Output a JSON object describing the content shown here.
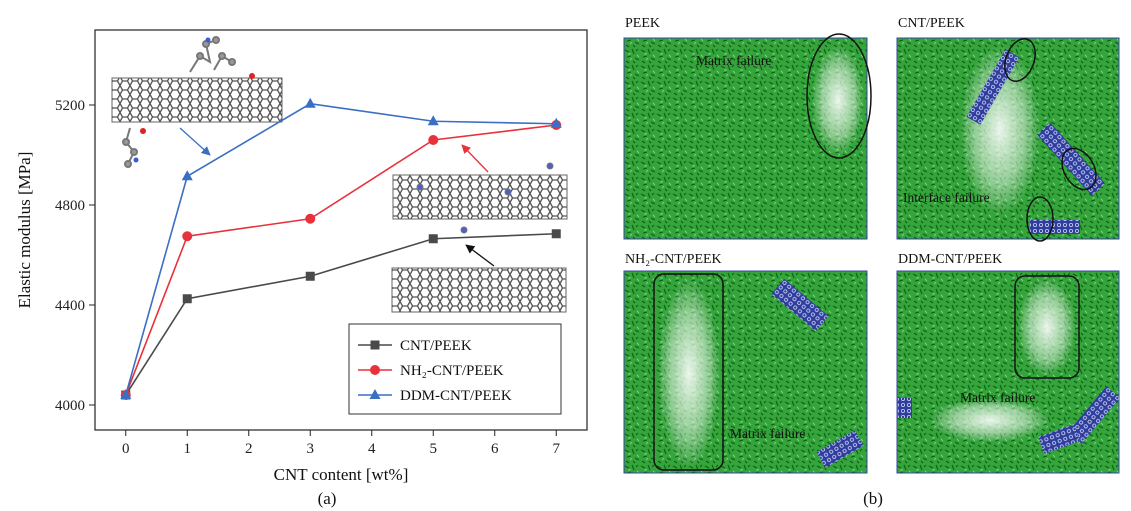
{
  "chart_data": {
    "type": "line",
    "xlabel": "CNT content [wt%]",
    "ylabel": "Elastic modulus [MPa]",
    "xlim": [
      -0.5,
      7.5
    ],
    "ylim": [
      3900,
      5500
    ],
    "x_ticks": [
      0,
      1,
      2,
      3,
      4,
      5,
      6,
      7
    ],
    "y_ticks": [
      4000,
      4400,
      4800,
      5200
    ],
    "grid": false,
    "legend_position": "bottom-right",
    "series": [
      {
        "name": "CNT/PEEK",
        "color": "#4a4a4a",
        "marker": "square",
        "x": [
          0,
          1,
          3,
          5,
          7
        ],
        "y": [
          4040,
          4425,
          4515,
          4665,
          4685
        ]
      },
      {
        "name": "NH₂-CNT/PEEK",
        "color": "#e8313a",
        "marker": "circle",
        "x": [
          0,
          1,
          3,
          5,
          7
        ],
        "y": [
          4040,
          4675,
          4745,
          5060,
          5120
        ]
      },
      {
        "name": "DDM-CNT/PEEK",
        "color": "#3b6fc4",
        "marker": "triangle",
        "x": [
          0,
          1,
          3,
          5,
          7
        ],
        "y": [
          4040,
          4915,
          5205,
          5135,
          5125
        ]
      }
    ]
  },
  "captions": {
    "a": "(a)",
    "b": "(b)"
  },
  "snapshots": [
    {
      "title": "PEEK",
      "annotations": [
        "Matrix failure"
      ]
    },
    {
      "title": "CNT/PEEK",
      "annotations": [
        "Interface failure"
      ]
    },
    {
      "title": "NH₂-CNT/PEEK",
      "annotations": [
        "Matrix failure"
      ]
    },
    {
      "title": "DDM-CNT/PEEK",
      "annotations": [
        "Matrix failure"
      ]
    }
  ],
  "colors": {
    "matrix": "#2fa233",
    "matrix_dark": "#16621c",
    "cnt": "#2f3e9c",
    "void": "#ffffff"
  }
}
